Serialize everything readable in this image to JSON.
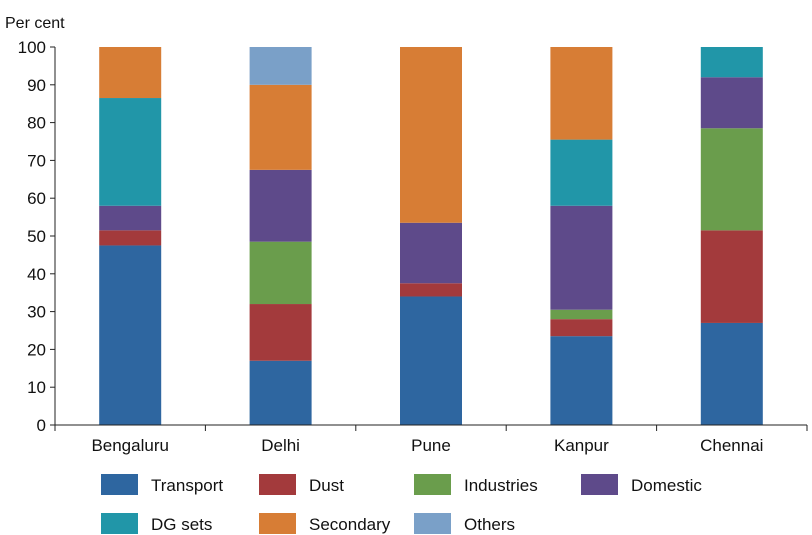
{
  "chart_data": {
    "type": "bar",
    "stacked": true,
    "ylabel": "Per cent",
    "ylim": [
      0,
      100
    ],
    "yticks": [
      0,
      10,
      20,
      30,
      40,
      50,
      60,
      70,
      80,
      90,
      100
    ],
    "grid": false,
    "legend_position": "bottom",
    "categories": [
      "Bengaluru",
      "Delhi",
      "Pune",
      "Kanpur",
      "Chennai"
    ],
    "series": [
      {
        "name": "Transport",
        "color": "#2e66a0",
        "values": [
          47.5,
          17,
          34,
          23.5,
          27
        ]
      },
      {
        "name": "Dust",
        "color": "#a33a3c",
        "values": [
          4,
          15,
          3.5,
          4.5,
          24.5
        ]
      },
      {
        "name": "Industries",
        "color": "#6a9d4c",
        "values": [
          0,
          16.5,
          0,
          2.5,
          27
        ]
      },
      {
        "name": "Domestic",
        "color": "#5e4a8a",
        "values": [
          6.5,
          19,
          16,
          27.5,
          13.5
        ]
      },
      {
        "name": "DG sets",
        "color": "#2196a8",
        "values": [
          28.5,
          0,
          0,
          17.5,
          8
        ]
      },
      {
        "name": "Secondary",
        "color": "#d77d35",
        "values": [
          13.5,
          22.5,
          46.5,
          24.5,
          0
        ]
      },
      {
        "name": "Others",
        "color": "#7aa0c8",
        "values": [
          0,
          10,
          0,
          0,
          0
        ]
      }
    ]
  }
}
